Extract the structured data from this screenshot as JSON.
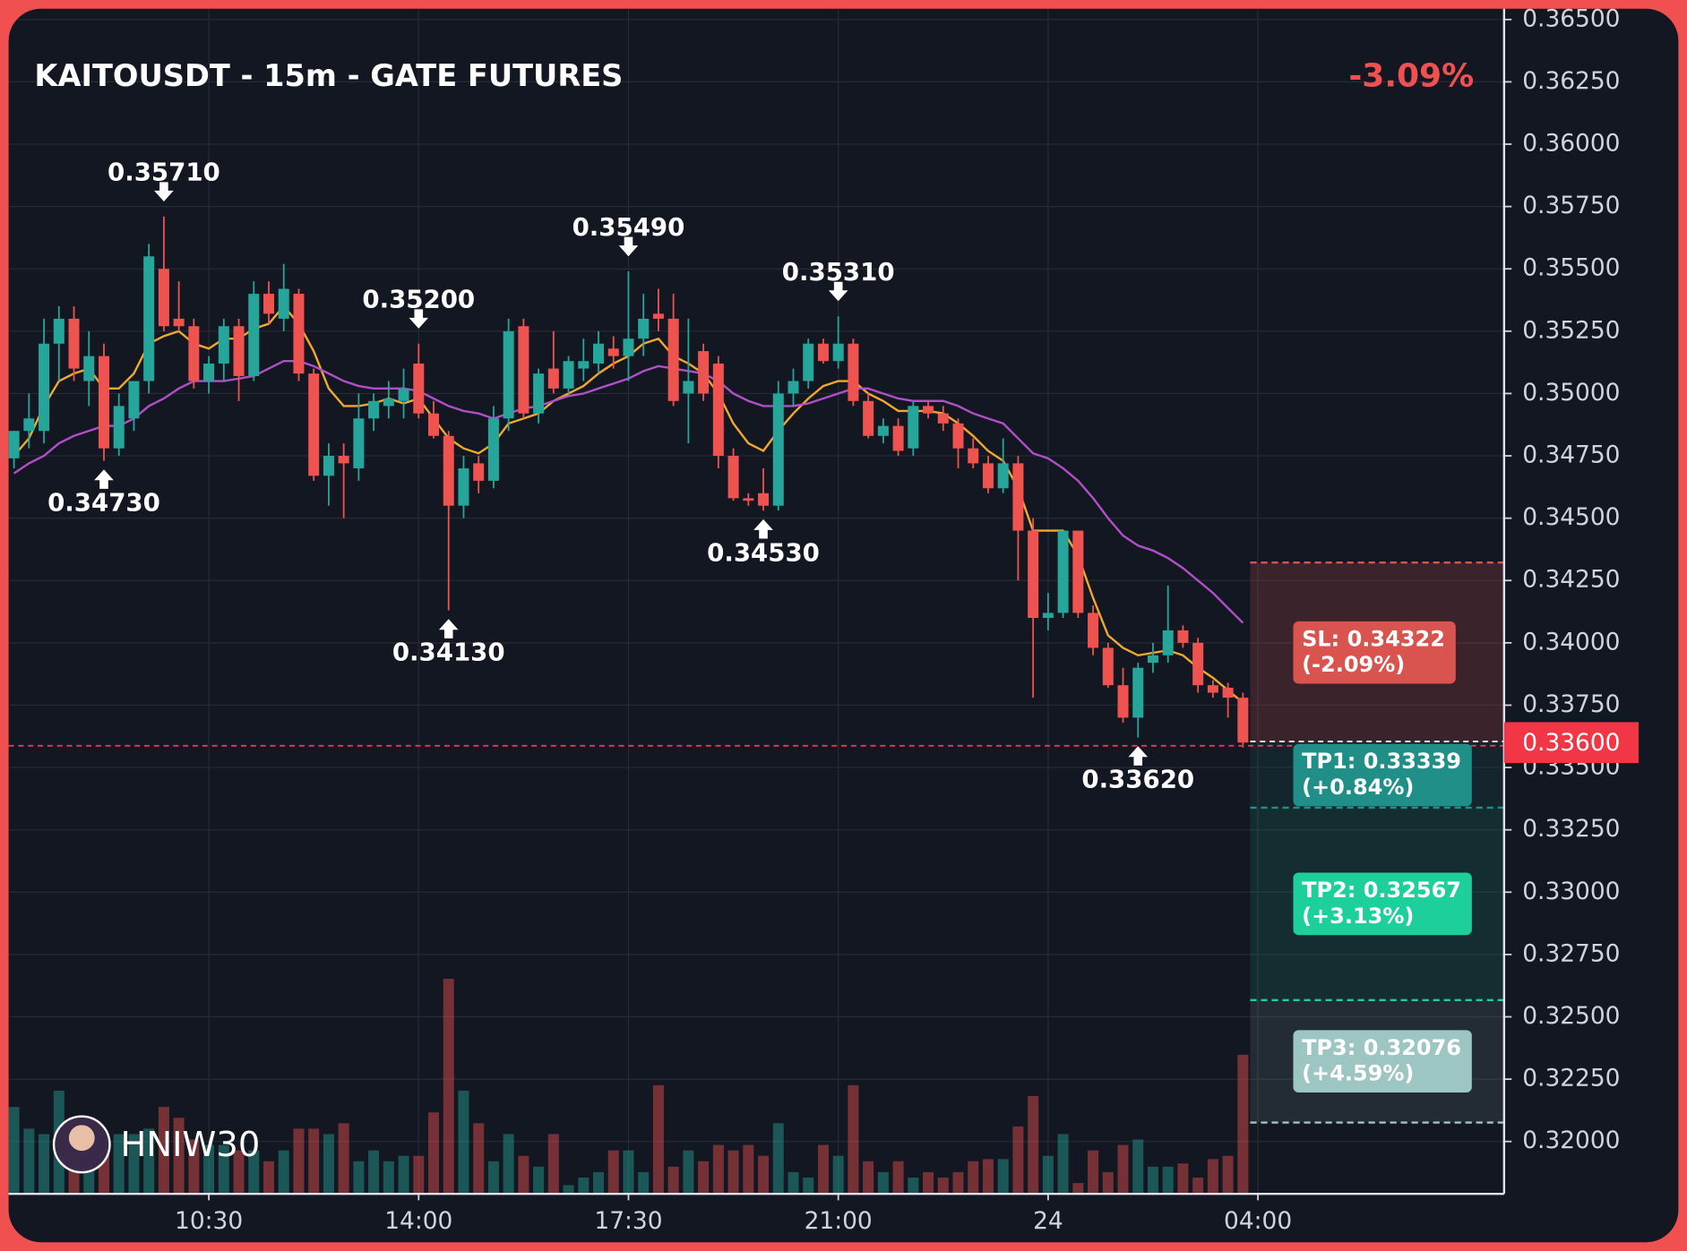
{
  "chart_data": {
    "type": "candlestick",
    "title": "KAITOUSDT - 15m - GATE FUTURES",
    "change": "-3.09%",
    "watermark": "HNIW30",
    "up_color": "#26a69a",
    "down_color": "#ef5350",
    "grid": true,
    "ylim": [
      0.3179,
      0.365
    ],
    "yticks": [
      {
        "value": 0.365,
        "label": "0.36500"
      },
      {
        "value": 0.3625,
        "label": "0.36250"
      },
      {
        "value": 0.36,
        "label": "0.36000"
      },
      {
        "value": 0.3575,
        "label": "0.35750"
      },
      {
        "value": 0.355,
        "label": "0.35500"
      },
      {
        "value": 0.3525,
        "label": "0.35250"
      },
      {
        "value": 0.35,
        "label": "0.35000"
      },
      {
        "value": 0.3475,
        "label": "0.34750"
      },
      {
        "value": 0.345,
        "label": "0.34500"
      },
      {
        "value": 0.3425,
        "label": "0.34250"
      },
      {
        "value": 0.34,
        "label": "0.34000"
      },
      {
        "value": 0.3375,
        "label": "0.33750"
      },
      {
        "value": 0.335,
        "label": "0.33500"
      },
      {
        "value": 0.3325,
        "label": "0.33250"
      },
      {
        "value": 0.33,
        "label": "0.33000"
      },
      {
        "value": 0.3275,
        "label": "0.32750"
      },
      {
        "value": 0.325,
        "label": "0.32500"
      },
      {
        "value": 0.3225,
        "label": "0.32250"
      },
      {
        "value": 0.32,
        "label": "0.32000"
      }
    ],
    "xticks": [
      {
        "value": 13,
        "label": "10:30"
      },
      {
        "value": 27,
        "label": "14:00"
      },
      {
        "value": 41,
        "label": "17:30"
      },
      {
        "value": 55,
        "label": "21:00"
      },
      {
        "value": 69,
        "label": "24"
      },
      {
        "value": 83,
        "label": "04:00"
      }
    ],
    "open": [
      0.3474,
      0.3485,
      0.3485,
      0.352,
      0.353,
      0.3505,
      0.3515,
      0.3478,
      0.349,
      0.3505,
      0.355,
      0.353,
      0.3527,
      0.3505,
      0.3512,
      0.3527,
      0.3507,
      0.354,
      0.353,
      0.354,
      0.3508,
      0.3467,
      0.3475,
      0.347,
      0.349,
      0.3495,
      0.3497,
      0.3512,
      0.3492,
      0.3483,
      0.3455,
      0.3472,
      0.3465,
      0.349,
      0.3527,
      0.3492,
      0.351,
      0.3502,
      0.351,
      0.3512,
      0.3518,
      0.3515,
      0.3522,
      0.3532,
      0.353,
      0.35,
      0.3517,
      0.3512,
      0.3475,
      0.3458,
      0.346,
      0.3455,
      0.35,
      0.3505,
      0.352,
      0.3513,
      0.352,
      0.3497,
      0.3483,
      0.3487,
      0.3478,
      0.3495,
      0.3492,
      0.3488,
      0.3478,
      0.3472,
      0.3462,
      0.3472,
      0.3445,
      0.341,
      0.3412,
      0.3445,
      0.3412,
      0.3398,
      0.3383,
      0.337,
      0.3392,
      0.3395,
      0.3405,
      0.34,
      0.3383,
      0.3382,
      0.3378
    ],
    "high": [
      0.3485,
      0.35,
      0.353,
      0.3535,
      0.3535,
      0.3525,
      0.352,
      0.35,
      0.3505,
      0.356,
      0.3571,
      0.3545,
      0.353,
      0.3515,
      0.353,
      0.353,
      0.3545,
      0.3545,
      0.3552,
      0.3542,
      0.351,
      0.348,
      0.348,
      0.35,
      0.35,
      0.3505,
      0.351,
      0.352,
      0.3497,
      0.3485,
      0.3475,
      0.3475,
      0.3495,
      0.353,
      0.353,
      0.351,
      0.3525,
      0.3515,
      0.3522,
      0.3525,
      0.3523,
      0.3549,
      0.354,
      0.3542,
      0.354,
      0.353,
      0.352,
      0.3515,
      0.3478,
      0.346,
      0.347,
      0.3505,
      0.351,
      0.3522,
      0.3522,
      0.3531,
      0.3522,
      0.35,
      0.349,
      0.349,
      0.3497,
      0.3497,
      0.3495,
      0.349,
      0.3482,
      0.3475,
      0.3482,
      0.3475,
      0.345,
      0.342,
      0.3445,
      0.3445,
      0.3415,
      0.34,
      0.339,
      0.3392,
      0.34,
      0.3423,
      0.3407,
      0.3402,
      0.3385,
      0.3384,
      0.338
    ],
    "low": [
      0.347,
      0.3478,
      0.348,
      0.3505,
      0.3505,
      0.3495,
      0.3473,
      0.3475,
      0.3485,
      0.35,
      0.3525,
      0.3525,
      0.3502,
      0.35,
      0.3505,
      0.3497,
      0.3505,
      0.3528,
      0.3525,
      0.3505,
      0.3465,
      0.3455,
      0.345,
      0.3465,
      0.3485,
      0.349,
      0.349,
      0.349,
      0.3482,
      0.3413,
      0.345,
      0.346,
      0.3462,
      0.3485,
      0.349,
      0.3488,
      0.35,
      0.35,
      0.3505,
      0.3508,
      0.351,
      0.3505,
      0.3515,
      0.3525,
      0.3495,
      0.348,
      0.3497,
      0.347,
      0.3457,
      0.3455,
      0.3453,
      0.3453,
      0.3495,
      0.3502,
      0.3512,
      0.351,
      0.3495,
      0.3482,
      0.348,
      0.3475,
      0.3475,
      0.349,
      0.3485,
      0.347,
      0.347,
      0.346,
      0.346,
      0.3425,
      0.3378,
      0.3405,
      0.341,
      0.341,
      0.3395,
      0.3382,
      0.3368,
      0.3362,
      0.3388,
      0.3392,
      0.3398,
      0.338,
      0.3378,
      0.337,
      0.3358
    ],
    "close": [
      0.3485,
      0.349,
      0.352,
      0.353,
      0.351,
      0.3515,
      0.3478,
      0.3495,
      0.3505,
      0.3555,
      0.3527,
      0.3527,
      0.3505,
      0.3512,
      0.3527,
      0.3507,
      0.354,
      0.3532,
      0.3542,
      0.3508,
      0.3467,
      0.3475,
      0.3472,
      0.349,
      0.3497,
      0.3498,
      0.3502,
      0.3492,
      0.3483,
      0.3455,
      0.347,
      0.3465,
      0.349,
      0.3525,
      0.3492,
      0.3508,
      0.3502,
      0.3513,
      0.3513,
      0.352,
      0.3515,
      0.3522,
      0.353,
      0.353,
      0.3497,
      0.3505,
      0.35,
      0.3475,
      0.3458,
      0.3457,
      0.3455,
      0.35,
      0.3505,
      0.352,
      0.3513,
      0.352,
      0.3497,
      0.3483,
      0.3487,
      0.3477,
      0.3495,
      0.3492,
      0.3488,
      0.3478,
      0.3472,
      0.3462,
      0.3472,
      0.3445,
      0.341,
      0.3412,
      0.3445,
      0.3412,
      0.3398,
      0.3383,
      0.337,
      0.339,
      0.3395,
      0.3405,
      0.34,
      0.3383,
      0.338,
      0.3378,
      0.336
    ],
    "volume": [
      80,
      60,
      55,
      95,
      70,
      50,
      40,
      55,
      55,
      60,
      80,
      70,
      50,
      45,
      45,
      40,
      40,
      30,
      40,
      60,
      60,
      55,
      65,
      30,
      40,
      30,
      35,
      35,
      75,
      198,
      95,
      65,
      30,
      55,
      35,
      25,
      55,
      8,
      15,
      20,
      40,
      40,
      20,
      100,
      25,
      40,
      30,
      45,
      40,
      45,
      35,
      65,
      20,
      15,
      45,
      35,
      100,
      30,
      20,
      30,
      15,
      20,
      15,
      20,
      30,
      32,
      32,
      62,
      90,
      35,
      55,
      10,
      40,
      20,
      45,
      50,
      25,
      25,
      28,
      15,
      32,
      35,
      128
    ],
    "ma_fast": {
      "color": "#f0a830",
      "values": [
        0.3475,
        0.3482,
        0.3495,
        0.3505,
        0.3508,
        0.351,
        0.3502,
        0.3502,
        0.3508,
        0.352,
        0.3523,
        0.3525,
        0.352,
        0.3518,
        0.3522,
        0.3522,
        0.3526,
        0.3528,
        0.3535,
        0.3528,
        0.3517,
        0.3502,
        0.3495,
        0.3495,
        0.3496,
        0.3498,
        0.3496,
        0.3498,
        0.349,
        0.3482,
        0.3478,
        0.3476,
        0.348,
        0.3488,
        0.349,
        0.3492,
        0.3497,
        0.35,
        0.3503,
        0.3508,
        0.3512,
        0.3515,
        0.352,
        0.3522,
        0.3515,
        0.3512,
        0.3508,
        0.35,
        0.3488,
        0.348,
        0.3477,
        0.3485,
        0.3492,
        0.3498,
        0.3503,
        0.3505,
        0.3505,
        0.35,
        0.3497,
        0.3493,
        0.3493,
        0.3493,
        0.3492,
        0.3488,
        0.3483,
        0.3477,
        0.3473,
        0.3462,
        0.3445,
        0.3445,
        0.3445,
        0.3435,
        0.3418,
        0.3403,
        0.3398,
        0.3395,
        0.3396,
        0.3397,
        0.3395,
        0.339,
        0.3386,
        0.3381,
        0.3376
      ]
    },
    "ma_slow": {
      "color": "#b04fc8",
      "values": [
        0.3468,
        0.3472,
        0.3475,
        0.348,
        0.3483,
        0.3485,
        0.3487,
        0.3487,
        0.349,
        0.3495,
        0.3498,
        0.3502,
        0.3505,
        0.3505,
        0.3505,
        0.3506,
        0.3507,
        0.351,
        0.3513,
        0.3513,
        0.3511,
        0.3508,
        0.3505,
        0.3503,
        0.3502,
        0.3502,
        0.3502,
        0.3501,
        0.3498,
        0.3495,
        0.3493,
        0.3492,
        0.349,
        0.3492,
        0.3494,
        0.3495,
        0.3497,
        0.3499,
        0.35,
        0.3502,
        0.3504,
        0.3506,
        0.3509,
        0.3511,
        0.351,
        0.3509,
        0.3508,
        0.3505,
        0.35,
        0.3497,
        0.3495,
        0.3495,
        0.3495,
        0.3496,
        0.3498,
        0.35,
        0.3502,
        0.3502,
        0.35,
        0.3498,
        0.3497,
        0.3497,
        0.3497,
        0.3495,
        0.3492,
        0.349,
        0.3488,
        0.3482,
        0.3476,
        0.3474,
        0.347,
        0.3465,
        0.3458,
        0.345,
        0.3443,
        0.3439,
        0.3437,
        0.3434,
        0.343,
        0.3425,
        0.342,
        0.3414,
        0.3408
      ]
    },
    "annotations": [
      {
        "index": 10,
        "kind": "high",
        "value": 0.3571,
        "label": "0.35710"
      },
      {
        "index": 6,
        "kind": "low",
        "value": 0.3473,
        "label": "0.34730"
      },
      {
        "index": 27,
        "kind": "high",
        "value": 0.352,
        "label": "0.35200"
      },
      {
        "index": 29,
        "kind": "low",
        "value": 0.3413,
        "label": "0.34130"
      },
      {
        "index": 41,
        "kind": "high",
        "value": 0.3549,
        "label": "0.35490"
      },
      {
        "index": 50,
        "kind": "low",
        "value": 0.3453,
        "label": "0.34530"
      },
      {
        "index": 55,
        "kind": "high",
        "value": 0.3531,
        "label": "0.35310"
      },
      {
        "index": 75,
        "kind": "low",
        "value": 0.3362,
        "label": "0.33620"
      }
    ],
    "price": {
      "value": 0.336,
      "label": "0.33600",
      "color": "#f23645"
    },
    "levels": [
      {
        "value": 0.34322,
        "label": "SL: 0.34322",
        "pct": "(-2.09%)",
        "color": "#d9534f"
      },
      {
        "value": 0.33339,
        "label": "TP1: 0.33339",
        "pct": "(+0.84%)",
        "color": "#1f8f87"
      },
      {
        "value": 0.32567,
        "label": "TP2: 0.32567",
        "pct": "(+3.13%)",
        "color": "#1ccf9b"
      },
      {
        "value": 0.32076,
        "label": "TP3: 0.32076",
        "pct": "(+4.59%)",
        "color": "#9dc5c1"
      }
    ]
  }
}
